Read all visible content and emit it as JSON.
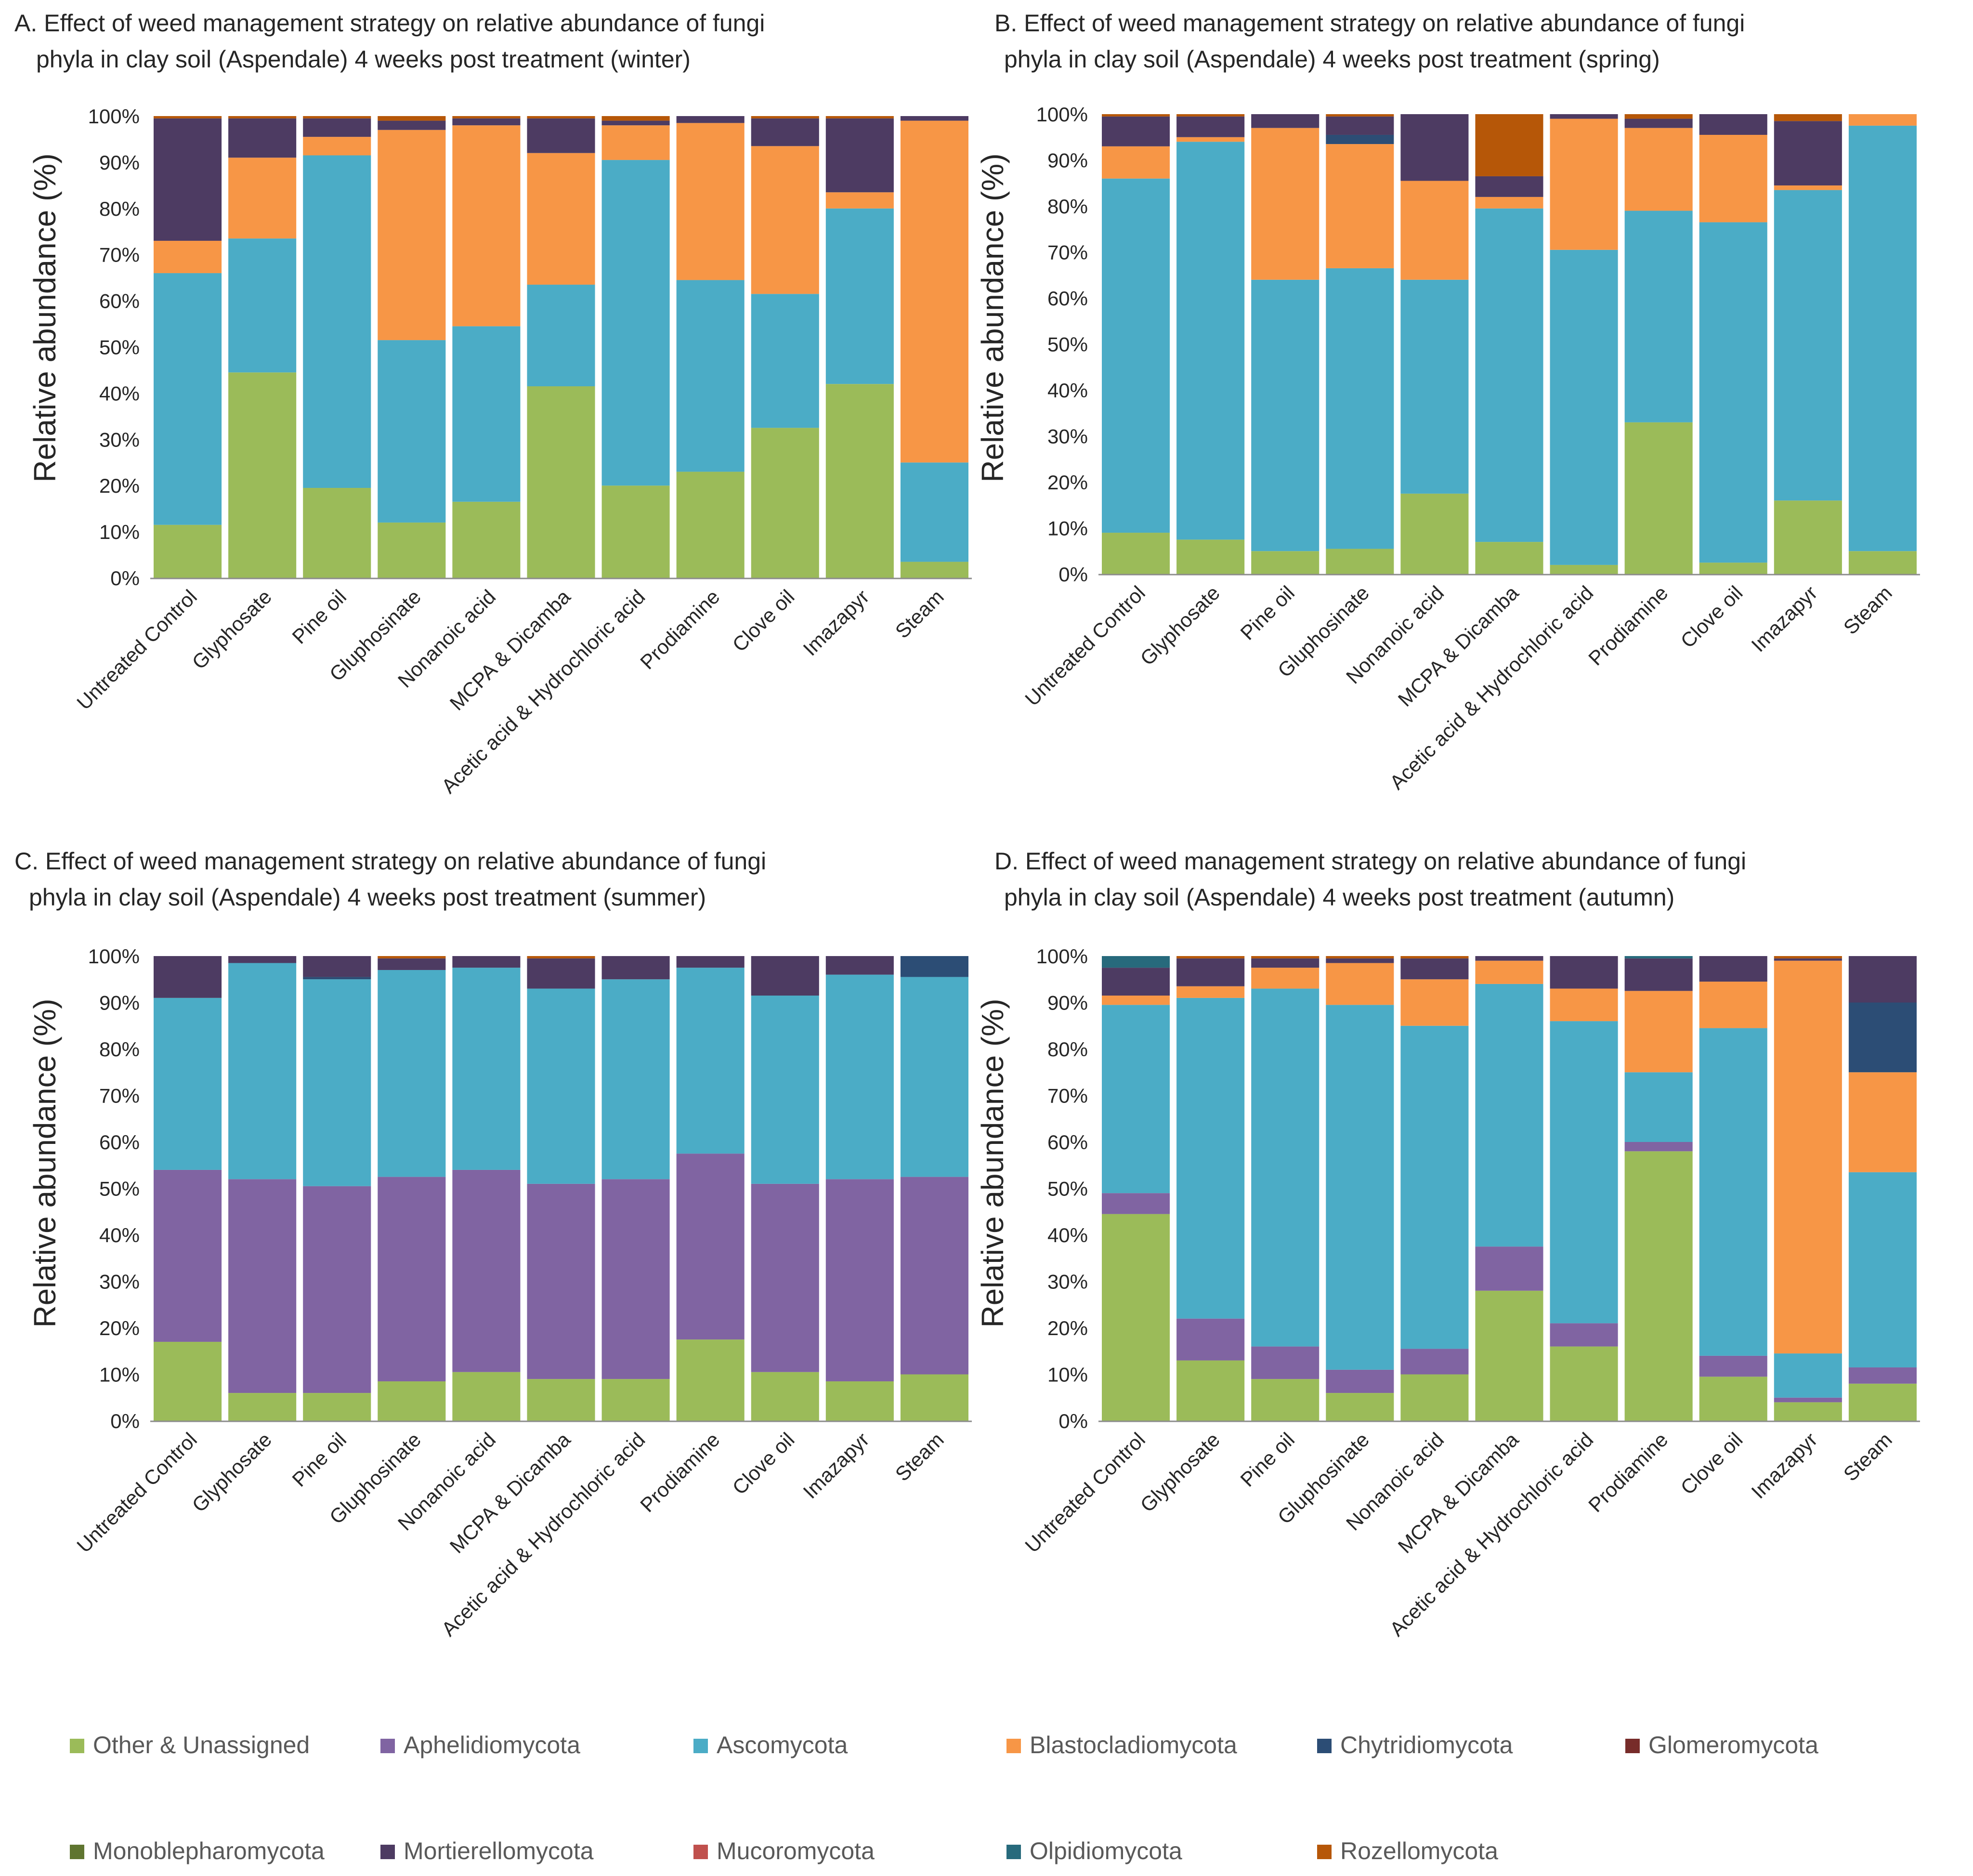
{
  "categories": [
    "Untreated Control",
    "Glyphosate",
    "Pine oil",
    "Gluphosinate",
    "Nonanoic acid",
    "MCPA & Dicamba",
    "Acetic acid & Hydrochloric acid",
    "Prodiamine",
    "Clove oil",
    "Imazapyr",
    "Steam"
  ],
  "phyla": [
    {
      "name": "Other & Unassigned",
      "color": "#9BBB59"
    },
    {
      "name": "Aphelidiomycota",
      "color": "#8064A2"
    },
    {
      "name": "Ascomycota",
      "color": "#4BACC6"
    },
    {
      "name": "Blastocladiomycota",
      "color": "#F79646"
    },
    {
      "name": "Chytridiomycota",
      "color": "#2C4D75"
    },
    {
      "name": "Glomeromycota",
      "color": "#772C2A"
    },
    {
      "name": "Monoblepharomycota",
      "color": "#5F7530"
    },
    {
      "name": "Mortierellomycota",
      "color": "#4D3B62"
    },
    {
      "name": "Mucoromycota",
      "color": "#C0504D"
    },
    {
      "name": "Olpidiomycota",
      "color": "#276A7C"
    },
    {
      "name": "Rozellomycota",
      "color": "#B65708"
    }
  ],
  "y_ticks": [
    "0%",
    "10%",
    "20%",
    "30%",
    "40%",
    "50%",
    "60%",
    "70%",
    "80%",
    "90%",
    "100%"
  ],
  "chart_data": [
    {
      "type": "bar",
      "stacked": true,
      "title_line1": "A.   Effect of weed management strategy on relative abundance of fungi",
      "title_line2": "phyla in clay soil (Aspendale) 4 weeks post treatment (winter)",
      "xlabel": "",
      "ylabel": "Relative abundance (%)",
      "ylim": [
        0,
        100
      ],
      "series": [
        {
          "name": "Other & Unassigned",
          "values": [
            11.5,
            44.5,
            19.5,
            12,
            16.5,
            41.5,
            20,
            23,
            32.5,
            42,
            3.5
          ]
        },
        {
          "name": "Aphelidiomycota",
          "values": [
            0,
            0,
            0,
            0,
            0,
            0,
            0,
            0,
            0,
            0,
            0
          ]
        },
        {
          "name": "Ascomycota",
          "values": [
            54.5,
            29,
            72,
            39.5,
            38,
            22,
            70.5,
            41.5,
            29,
            38,
            21.5
          ]
        },
        {
          "name": "Blastocladiomycota",
          "values": [
            7,
            17.5,
            4,
            45.5,
            43.5,
            28.5,
            7.5,
            34,
            32,
            3.5,
            74
          ]
        },
        {
          "name": "Chytridiomycota",
          "values": [
            0,
            0,
            0,
            0,
            0,
            0,
            0,
            0,
            0,
            0,
            0
          ]
        },
        {
          "name": "Glomeromycota",
          "values": [
            0,
            0,
            0,
            0,
            0,
            0,
            0,
            0,
            0,
            0,
            0
          ]
        },
        {
          "name": "Monoblepharomycota",
          "values": [
            0,
            0,
            0,
            0,
            0,
            0,
            0,
            0,
            0,
            0,
            0
          ]
        },
        {
          "name": "Mortierellomycota",
          "values": [
            26.5,
            8.5,
            4,
            2,
            1.5,
            7.5,
            1,
            1.5,
            6,
            16,
            1
          ]
        },
        {
          "name": "Mucoromycota",
          "values": [
            0,
            0,
            0,
            0,
            0,
            0,
            0,
            0,
            0,
            0,
            0
          ]
        },
        {
          "name": "Olpidiomycota",
          "values": [
            0,
            0,
            0,
            0,
            0,
            0,
            0,
            0,
            0,
            0,
            0
          ]
        },
        {
          "name": "Rozellomycota",
          "values": [
            0.5,
            0.5,
            0.5,
            1,
            0.5,
            0.5,
            1,
            0,
            0.5,
            0.5,
            0
          ]
        }
      ]
    },
    {
      "type": "bar",
      "stacked": true,
      "title_line1": "B. Effect of weed management strategy on relative abundance of fungi",
      "title_line2": "phyla in clay soil (Aspendale) 4 weeks post treatment (spring)",
      "xlabel": "",
      "ylabel": "Relative abundance (%)",
      "ylim": [
        0,
        100
      ],
      "series": [
        {
          "name": "Other & Unassigned",
          "values": [
            9,
            7.5,
            5,
            5.5,
            17.5,
            7,
            2,
            33,
            2.5,
            16,
            5
          ]
        },
        {
          "name": "Aphelidiomycota",
          "values": [
            0,
            0,
            0,
            0,
            0,
            0,
            0,
            0,
            0,
            0,
            0
          ]
        },
        {
          "name": "Ascomycota",
          "values": [
            77,
            86.5,
            59,
            61,
            46.5,
            72.5,
            68.5,
            46,
            74,
            67.5,
            92.5
          ]
        },
        {
          "name": "Blastocladiomycota",
          "values": [
            7,
            1,
            33,
            27,
            21.5,
            2.5,
            28.5,
            18,
            19,
            1,
            2.5
          ]
        },
        {
          "name": "Chytridiomycota",
          "values": [
            0,
            0,
            0,
            2,
            0,
            0,
            0,
            0,
            0,
            0,
            0
          ]
        },
        {
          "name": "Glomeromycota",
          "values": [
            0,
            0,
            0,
            0,
            0,
            0,
            0,
            0,
            0,
            0,
            0
          ]
        },
        {
          "name": "Monoblepharomycota",
          "values": [
            0,
            0,
            0,
            0,
            0,
            0,
            0,
            0,
            0,
            0,
            0
          ]
        },
        {
          "name": "Mortierellomycota",
          "values": [
            6.5,
            4.5,
            3,
            4,
            14.5,
            4.5,
            1,
            2,
            4.5,
            14,
            0
          ]
        },
        {
          "name": "Mucoromycota",
          "values": [
            0,
            0,
            0,
            0,
            0,
            0,
            0,
            0,
            0,
            0,
            0
          ]
        },
        {
          "name": "Olpidiomycota",
          "values": [
            0,
            0,
            0,
            0,
            0,
            0,
            0,
            0,
            0,
            0,
            0
          ]
        },
        {
          "name": "Rozellomycota",
          "values": [
            0.5,
            0.5,
            0,
            0.5,
            0,
            13.5,
            0,
            1,
            0,
            1.5,
            0
          ]
        }
      ]
    },
    {
      "type": "bar",
      "stacked": true,
      "title_line1": "C. Effect of weed management strategy on relative abundance of fungi",
      "title_line2": "phyla in clay soil (Aspendale) 4 weeks post treatment (summer)",
      "xlabel": "",
      "ylabel": "Relative abundance (%)",
      "ylim": [
        0,
        100
      ],
      "series": [
        {
          "name": "Other & Unassigned",
          "values": [
            17,
            6,
            6,
            8.5,
            10.5,
            9,
            9,
            17.5,
            10.5,
            8.5,
            10
          ]
        },
        {
          "name": "Aphelidiomycota",
          "values": [
            37,
            46,
            44.5,
            44,
            43.5,
            42,
            43,
            40,
            40.5,
            43.5,
            42.5
          ]
        },
        {
          "name": "Ascomycota",
          "values": [
            37,
            46.5,
            44.5,
            44.5,
            43.5,
            42,
            43,
            40,
            40.5,
            44,
            43
          ]
        },
        {
          "name": "Blastocladiomycota",
          "values": [
            0,
            0,
            0,
            0,
            0,
            0,
            0,
            0,
            0,
            0,
            0
          ]
        },
        {
          "name": "Chytridiomycota",
          "values": [
            0,
            0,
            0.5,
            0,
            0,
            0,
            0,
            0,
            0,
            0,
            4.5
          ]
        },
        {
          "name": "Glomeromycota",
          "values": [
            0,
            0,
            0,
            0,
            0,
            0,
            0,
            0,
            0,
            0,
            0
          ]
        },
        {
          "name": "Monoblepharomycota",
          "values": [
            0,
            0,
            0,
            0,
            0,
            0,
            0,
            0,
            0,
            0,
            0
          ]
        },
        {
          "name": "Mortierellomycota",
          "values": [
            9,
            1.5,
            4.5,
            2.5,
            2.5,
            6.5,
            5,
            2.5,
            8.5,
            4,
            0
          ]
        },
        {
          "name": "Mucoromycota",
          "values": [
            0,
            0,
            0,
            0,
            0,
            0,
            0,
            0,
            0,
            0,
            0
          ]
        },
        {
          "name": "Olpidiomycota",
          "values": [
            0,
            0,
            0,
            0,
            0,
            0,
            0,
            0,
            0,
            0,
            0
          ]
        },
        {
          "name": "Rozellomycota",
          "values": [
            0,
            0,
            0,
            0.5,
            0,
            0.5,
            0,
            0,
            0,
            0,
            0
          ]
        }
      ]
    },
    {
      "type": "bar",
      "stacked": true,
      "title_line1": "D. Effect of weed management strategy on relative abundance of fungi",
      "title_line2": "phyla in clay soil (Aspendale) 4 weeks post treatment (autumn)",
      "xlabel": "",
      "ylabel": "Relative abundance (%)",
      "ylim": [
        0,
        100
      ],
      "series": [
        {
          "name": "Other & Unassigned",
          "values": [
            44.5,
            13,
            9,
            6,
            10,
            28,
            16,
            58,
            9.5,
            4,
            8
          ]
        },
        {
          "name": "Aphelidiomycota",
          "values": [
            4.5,
            9,
            7,
            5,
            5.5,
            9.5,
            5,
            2,
            4.5,
            1,
            3.5
          ]
        },
        {
          "name": "Ascomycota",
          "values": [
            40.5,
            69,
            77,
            78.5,
            69.5,
            56.5,
            65,
            15,
            70.5,
            9.5,
            42
          ]
        },
        {
          "name": "Blastocladiomycota",
          "values": [
            2,
            2.5,
            4.5,
            9,
            10,
            5,
            7,
            17.5,
            10,
            84.5,
            21.5
          ]
        },
        {
          "name": "Chytridiomycota",
          "values": [
            0,
            0,
            0,
            0,
            0,
            0,
            0,
            0,
            0,
            0,
            15
          ]
        },
        {
          "name": "Glomeromycota",
          "values": [
            0,
            0,
            0,
            0,
            0,
            0,
            0,
            0,
            0,
            0,
            0
          ]
        },
        {
          "name": "Monoblepharomycota",
          "values": [
            0,
            0,
            0,
            0,
            0,
            0,
            0,
            0,
            0,
            0,
            0
          ]
        },
        {
          "name": "Mortierellomycota",
          "values": [
            6,
            6,
            2,
            1,
            4.5,
            1,
            7,
            7,
            5.5,
            0.5,
            10
          ]
        },
        {
          "name": "Mucoromycota",
          "values": [
            0,
            0,
            0,
            0,
            0,
            0,
            0,
            0,
            0,
            0,
            0
          ]
        },
        {
          "name": "Olpidiomycota",
          "values": [
            2.5,
            0,
            0,
            0,
            0,
            0,
            0,
            0.5,
            0,
            0,
            0
          ]
        },
        {
          "name": "Rozellomycota",
          "values": [
            0,
            0.5,
            0.5,
            0.5,
            0.5,
            0,
            0,
            0,
            0,
            0.5,
            0
          ]
        }
      ]
    }
  ]
}
